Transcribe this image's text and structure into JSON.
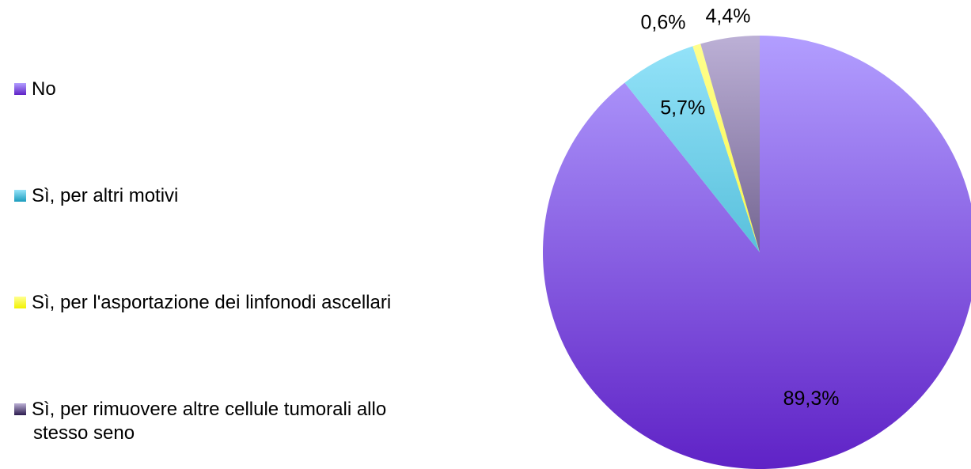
{
  "chart_data": {
    "type": "pie",
    "categories": [
      "No",
      "Sì, per altri motivi",
      "Sì, per l'asportazione dei linfonodi ascellari",
      "Sì, per rimuovere altre cellule tumorali allo stesso seno"
    ],
    "values": [
      89.3,
      5.7,
      0.6,
      4.4
    ],
    "value_labels": [
      "89,3%",
      "5,7%",
      "0,6%",
      "4,4%"
    ],
    "colors": [
      [
        "#b29eff",
        "#5f22c6"
      ],
      [
        "#96e4fa",
        "#1b9cbd"
      ],
      [
        "#ffff90",
        "#f2f200"
      ],
      [
        "#bcb0d6",
        "#2b1a4d"
      ]
    ],
    "legend": "left"
  }
}
